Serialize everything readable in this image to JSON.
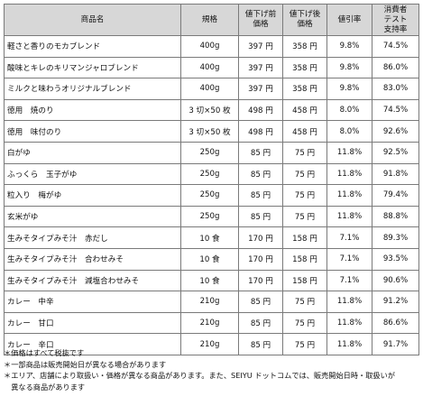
{
  "table": {
    "headers": [
      "商品名",
      "規格",
      "値下げ前\n価格",
      "値下げ後\n価格",
      "値引率",
      "消費者\nテスト\n支持率"
    ],
    "rows": [
      [
        "軽さと香りのモカブレンド",
        "400g",
        "397 円",
        "358 円",
        "9.8%",
        "74.5%"
      ],
      [
        "酸味とキレのキリマンジャロブレンド",
        "400g",
        "397 円",
        "358 円",
        "9.8%",
        "86.0%"
      ],
      [
        "ミルクと味わうオリジナルブレンド",
        "400g",
        "397 円",
        "358 円",
        "9.8%",
        "83.0%"
      ],
      [
        "徳用　焼のり",
        "3 切×50 枚",
        "498 円",
        "458 円",
        "8.0%",
        "74.5%"
      ],
      [
        "徳用　味付のり",
        "3 切×50 枚",
        "498 円",
        "458 円",
        "8.0%",
        "92.6%"
      ],
      [
        "白がゆ",
        "250g",
        "85 円",
        "75 円",
        "11.8%",
        "92.5%"
      ],
      [
        "ふっくら　玉子がゆ",
        "250g",
        "85 円",
        "75 円",
        "11.8%",
        "91.8%"
      ],
      [
        "粒入り　梅がゆ",
        "250g",
        "85 円",
        "75 円",
        "11.8%",
        "79.4%"
      ],
      [
        "玄米がゆ",
        "250g",
        "85 円",
        "75 円",
        "11.8%",
        "88.8%"
      ],
      [
        "生みそタイプみそ汁　赤だし",
        "10 食",
        "170 円",
        "158 円",
        "7.1%",
        "89.3%"
      ],
      [
        "生みそタイプみそ汁　合わせみそ",
        "10 食",
        "170 円",
        "158 円",
        "7.1%",
        "93.5%"
      ],
      [
        "生みそタイプみそ汁　減塩合わせみそ",
        "10 食",
        "170 円",
        "158 円",
        "7.1%",
        "90.6%"
      ],
      [
        "カレー　中辛",
        "210g",
        "85 円",
        "75 円",
        "11.8%",
        "91.2%"
      ],
      [
        "カレー　甘口",
        "210g",
        "85 円",
        "75 円",
        "11.8%",
        "86.6%"
      ],
      [
        "カレー　辛口",
        "210g",
        "85 円",
        "75 円",
        "11.8%",
        "91.7%"
      ]
    ]
  },
  "notes": [
    "＊価格はすべて税抜です",
    "＊一部商品は販売開始日が異なる場合があります",
    "＊エリア、店舗により取扱い・価格が異なる商品があります。また、SEIYU ドットコムでは、販売開始日時・取扱いが",
    "　異なる商品があります"
  ]
}
